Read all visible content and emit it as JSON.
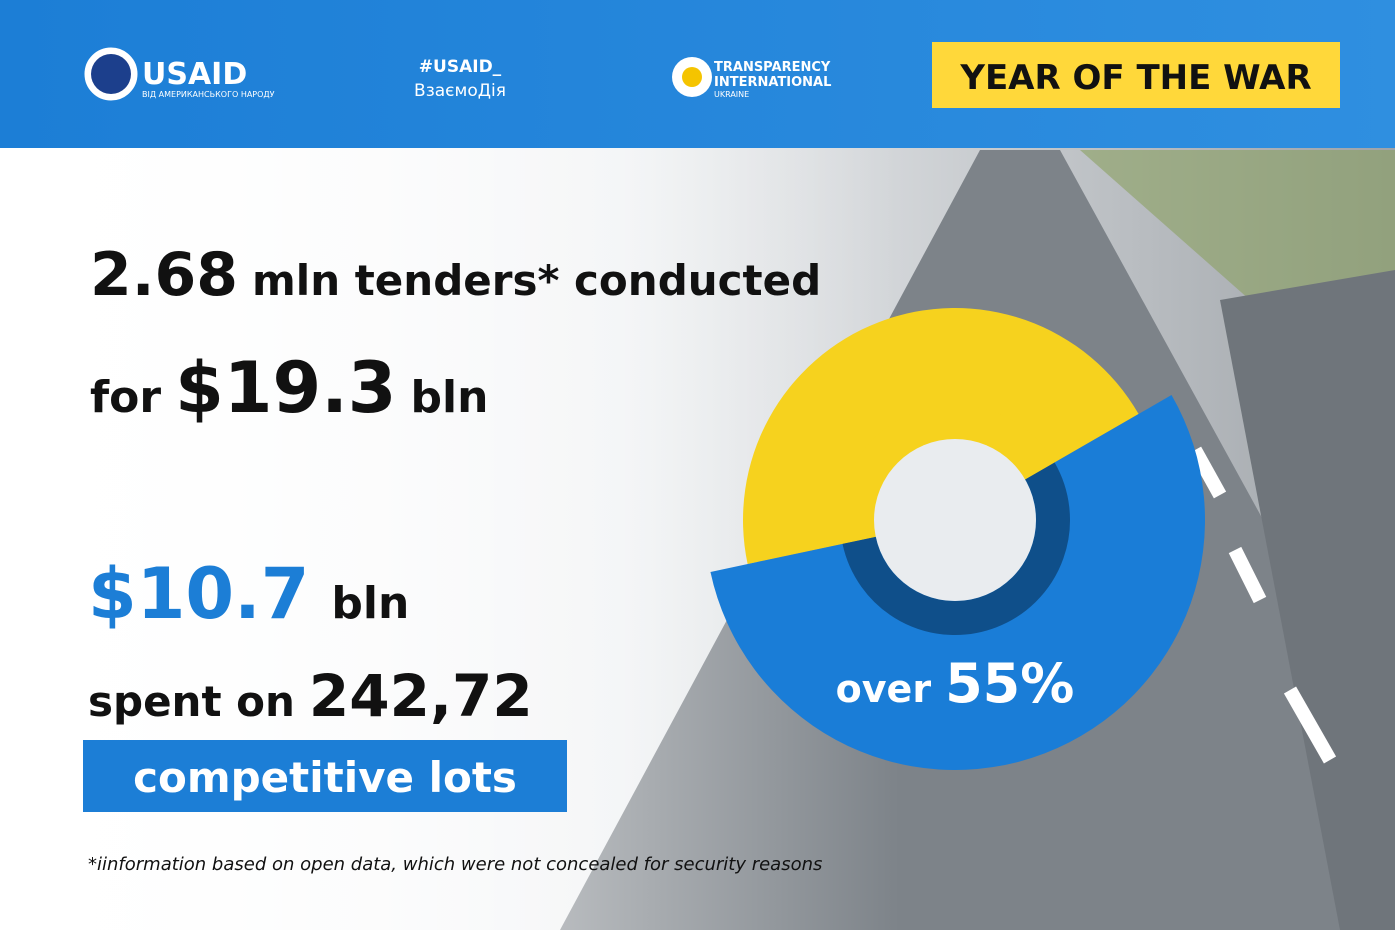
{
  "header": {
    "usaid": "USAID",
    "usaid_tagline": "ВІД АМЕРИКАНСЬКОГО НАРОДУ",
    "hashtag": "#USAID_",
    "hashtag_sub": "ВзаємоДія",
    "ti_line1": "TRANSPARENCY",
    "ti_line2": "INTERNATIONAL",
    "ti_line3": "UKRAINE",
    "badge": "YEAR OF THE WAR"
  },
  "stats": {
    "tenders_value": "2.68",
    "tenders_text": "mln tenders* conducted",
    "for": "for",
    "amount": "$19.3",
    "amount_unit": "bln",
    "spent": "$10.7",
    "spent_unit": "bln",
    "spent_on": "spent on",
    "lots": "242,72",
    "lots_text": "competitive lots"
  },
  "donut": {
    "prefix": "over",
    "value": 55,
    "value_label": "55%"
  },
  "footnote": "*iinformation based on open data, which were not concealed for security reasons"
}
